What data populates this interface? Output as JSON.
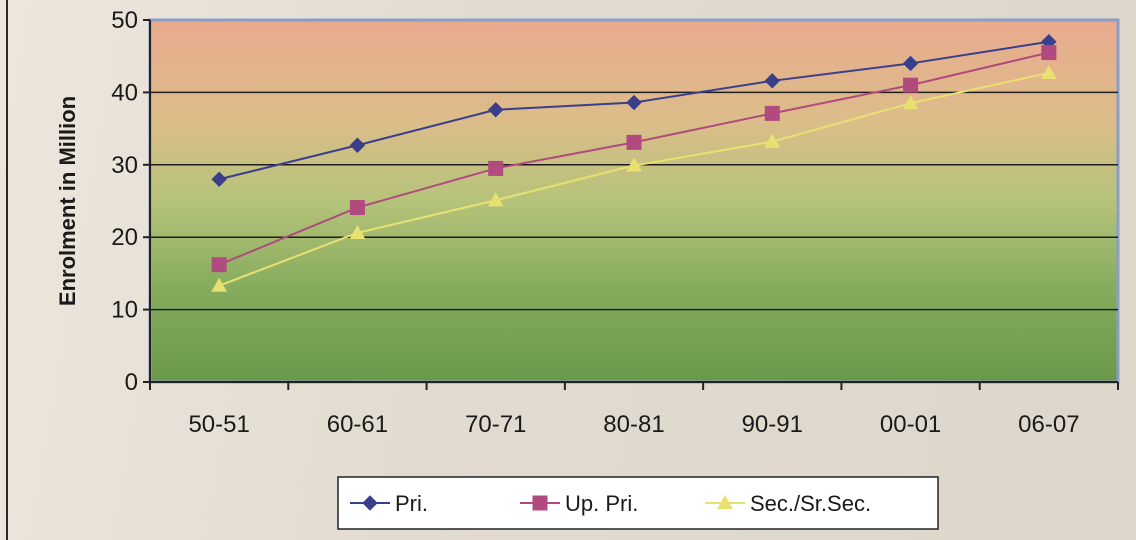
{
  "chart_data": {
    "type": "line",
    "title": "",
    "xlabel": "",
    "ylabel": "Enrolment in Million",
    "categories": [
      "50-51",
      "60-61",
      "70-71",
      "80-81",
      "90-91",
      "00-01",
      "06-07"
    ],
    "ylim": [
      0,
      50
    ],
    "yticks": [
      0,
      10,
      20,
      30,
      40,
      50
    ],
    "grid": true,
    "legend_position": "bottom",
    "series": [
      {
        "name": "Pri.",
        "values": [
          28,
          32.7,
          37.6,
          38.6,
          41.6,
          44,
          47
        ],
        "color": "#3a3f8c",
        "marker": "diamond"
      },
      {
        "name": "Up. Pri.",
        "values": [
          16.2,
          24.1,
          29.5,
          33.1,
          37.1,
          41,
          45.5
        ],
        "color": "#b04a7f",
        "marker": "square"
      },
      {
        "name": "Sec./Sr.Sec.",
        "values": [
          13.3,
          20.6,
          25.1,
          29.9,
          33.2,
          38.5,
          42.7
        ],
        "color": "#e8e070",
        "marker": "triangle"
      }
    ]
  }
}
